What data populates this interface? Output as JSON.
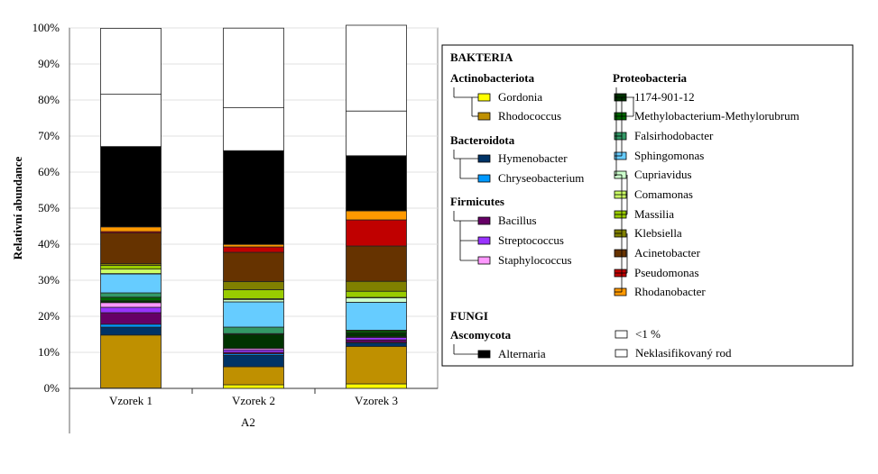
{
  "chart_data": {
    "type": "bar",
    "stacked": true,
    "ylabel": "Relativní abundance",
    "xlabel": "A2",
    "ylim": [
      0,
      100
    ],
    "yticks": [
      "0%",
      "10%",
      "20%",
      "30%",
      "40%",
      "50%",
      "60%",
      "70%",
      "80%",
      "90%",
      "100%"
    ],
    "categories": [
      "Vzorek 1",
      "Vzorek 2",
      "Vzorek 3"
    ],
    "series": [
      {
        "name": "Gordonia",
        "color": "#ffff00",
        "values": [
          0.1,
          1.0,
          1.25
        ]
      },
      {
        "name": "Rhodococcus",
        "color": "#bf9000",
        "values": [
          14.7,
          5.0,
          10.4
        ]
      },
      {
        "name": "Hymenobacter",
        "color": "#003366",
        "values": [
          2.2,
          3.2,
          1.0
        ]
      },
      {
        "name": "Chryseobacterium",
        "color": "#0099ff",
        "values": [
          0.8,
          0.4,
          0.1
        ]
      },
      {
        "name": "Bacillus",
        "color": "#660066",
        "values": [
          3.2,
          0.4,
          0.7
        ]
      },
      {
        "name": "Streptococcus",
        "color": "#9933ff",
        "values": [
          1.5,
          0.7,
          0.7
        ]
      },
      {
        "name": "Staphylococcus",
        "color": "#ff99ff",
        "values": [
          1.3,
          0.4,
          0.2
        ]
      },
      {
        "name": "1174-901-12",
        "color": "#003300",
        "values": [
          0.5,
          3.9,
          1.1
        ]
      },
      {
        "name": "Methylobacterium-Methylorubrum",
        "color": "#006600",
        "values": [
          1.0,
          0.2,
          0.6
        ]
      },
      {
        "name": "Falsirhodobacter",
        "color": "#339966",
        "values": [
          1.2,
          1.8,
          0.1
        ]
      },
      {
        "name": "Sphingomonas",
        "color": "#66ccff",
        "values": [
          5.25,
          7.0,
          7.75
        ]
      },
      {
        "name": "Cupriavidus",
        "color": "#ccffcc",
        "values": [
          0.1,
          0.6,
          1.25
        ]
      },
      {
        "name": "Comamonas",
        "color": "#ccff66",
        "values": [
          1.25,
          0.3,
          0.1
        ]
      },
      {
        "name": "Massilia",
        "color": "#99cc00",
        "values": [
          1.0,
          2.5,
          1.7
        ]
      },
      {
        "name": "Klebsiella",
        "color": "#808000",
        "values": [
          0.5,
          2.25,
          2.75
        ]
      },
      {
        "name": "Acinetobacter",
        "color": "#663300",
        "values": [
          8.5,
          8.1,
          9.8
        ]
      },
      {
        "name": "Pseudomonas",
        "color": "#c00000",
        "values": [
          0.4,
          1.5,
          7.25
        ]
      },
      {
        "name": "Rhodanobacter",
        "color": "#ff9900",
        "values": [
          1.3,
          0.7,
          2.5
        ]
      },
      {
        "name": "Alternaria",
        "color": "#000000",
        "values": [
          22.3,
          26.0,
          15.3
        ]
      },
      {
        "name": "<1 %",
        "color": "#ffffff",
        "values": [
          14.5,
          11.9,
          12.4
        ]
      },
      {
        "name": "Neklasifikovaný rod",
        "color": "#ffffff",
        "values": [
          18.3,
          22.1,
          23.8
        ]
      }
    ],
    "grid": true,
    "legend_position": "right"
  },
  "legend": {
    "kingdom_bacteria": "BAKTERIA",
    "kingdom_fungi": "FUNGI",
    "phyla": [
      "Actinobacteriota",
      "Bacteroidota",
      "Firmicutes",
      "Proteobacteria",
      "Ascomycota"
    ]
  }
}
